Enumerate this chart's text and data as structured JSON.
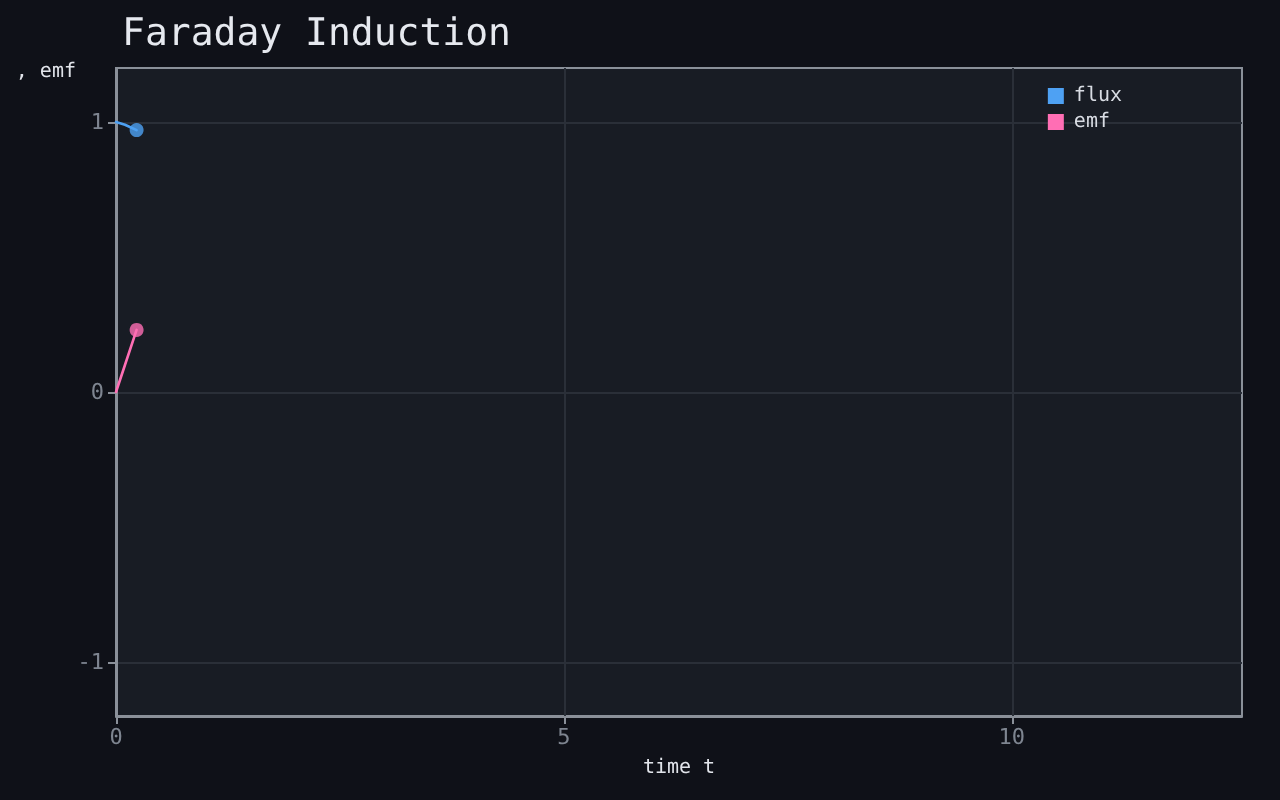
{
  "chart_data": {
    "type": "line",
    "title": "Faraday Induction",
    "xlabel": "time t",
    "ylabel": ", emf",
    "xlim": [
      0,
      12.57
    ],
    "xticks": [
      0,
      5,
      10
    ],
    "ylim": [
      -1.2,
      1.2
    ],
    "yticks": [
      -1,
      0,
      1
    ],
    "grid": true,
    "legend": "top right",
    "marker": "circle",
    "series": [
      {
        "name": "flux",
        "color": "#4ea1f3",
        "marker": "none",
        "x": [
          0,
          0.1,
          0.23
        ],
        "values": [
          1,
          0.99,
          0.97
        ]
      },
      {
        "name": "emf",
        "color": "#ff6eb4",
        "marker": "none",
        "x": [
          0,
          0.1,
          0.23
        ],
        "values": [
          0,
          0.1,
          0.23
        ]
      },
      {
        "color": "#4ea1f3",
        "type": "scatter",
        "x": [
          0.23
        ],
        "values": [
          0.97
        ]
      },
      {
        "color": "#ff6eb4",
        "type": "scatter",
        "x": [
          0.23
        ],
        "values": [
          0.23
        ]
      }
    ]
  }
}
